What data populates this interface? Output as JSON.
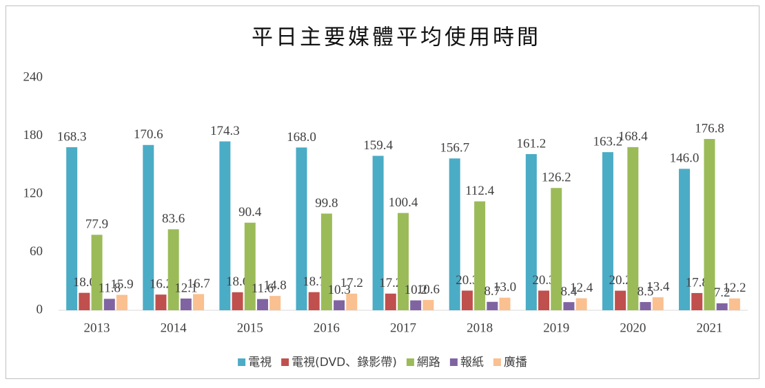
{
  "chart_data": {
    "type": "bar",
    "title": "平日主要媒體平均使用時間",
    "categories": [
      "2013",
      "2014",
      "2015",
      "2016",
      "2017",
      "2018",
      "2019",
      "2020",
      "2021"
    ],
    "series": [
      {
        "name": "電視",
        "color": "#4bacc6",
        "values": [
          168.3,
          170.6,
          174.3,
          168.0,
          159.4,
          156.7,
          161.2,
          163.2,
          146.0
        ],
        "value_labels": [
          "168.3",
          "170.6",
          "174.3",
          "168.0",
          "159.4",
          "156.7",
          "161.2",
          "163.2",
          "146.0"
        ]
      },
      {
        "name": "電視(DVD、錄影帶)",
        "color": "#c0504d",
        "values": [
          18.0,
          16.2,
          18.6,
          18.7,
          17.2,
          20.3,
          20.3,
          20.2,
          17.8
        ],
        "value_labels": [
          "18.0",
          "16.2",
          "18.6",
          "18.7",
          "17.2",
          "20.3",
          "20.3",
          "20.2",
          "17.8"
        ]
      },
      {
        "name": "網路",
        "color": "#9bbb59",
        "values": [
          77.9,
          83.6,
          90.4,
          99.8,
          100.4,
          112.4,
          126.2,
          168.4,
          176.8
        ],
        "value_labels": [
          "77.9",
          "83.6",
          "90.4",
          "99.8",
          "100.4",
          "112.4",
          "126.2",
          "168.4",
          "176.8"
        ]
      },
      {
        "name": "報紙",
        "color": "#8064a2",
        "values": [
          11.8,
          12.1,
          11.6,
          10.3,
          10.2,
          8.7,
          8.4,
          8.5,
          7.2
        ],
        "value_labels": [
          "11.8",
          "12.1",
          "11.6",
          "10.3",
          "10.2",
          "8.7",
          "8.4",
          "8.5",
          "7.2"
        ]
      },
      {
        "name": "廣播",
        "color": "#fac090",
        "values": [
          15.9,
          16.7,
          14.8,
          17.2,
          10.6,
          13.0,
          12.4,
          13.4,
          12.2
        ],
        "value_labels": [
          "15.9",
          "16.7",
          "14.8",
          "17.2",
          "10.6",
          "13.0",
          "12.4",
          "13.4",
          "12.2"
        ]
      }
    ],
    "ylim": [
      0,
      240
    ],
    "yticks": [
      0,
      60,
      120,
      180,
      240
    ],
    "grid": false,
    "legend": "bottom"
  }
}
